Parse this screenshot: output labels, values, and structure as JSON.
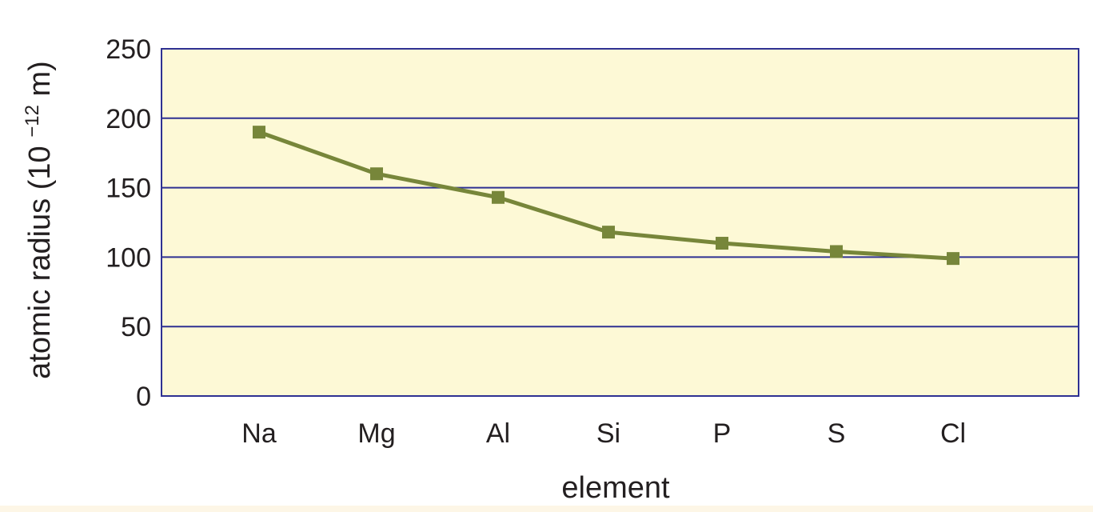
{
  "chart_data": {
    "type": "line",
    "title": "",
    "xlabel": "element",
    "ylabel": {
      "text": "atomic radius (10",
      "superscript": "−12",
      "suffix": " m)"
    },
    "categories": [
      "Na",
      "Mg",
      "Al",
      "Si",
      "P",
      "S",
      "Cl"
    ],
    "series": [
      {
        "values": [
          190,
          160,
          143,
          118,
          110,
          104,
          99
        ]
      }
    ],
    "ylim": [
      0,
      250
    ],
    "yticks": [
      0,
      50,
      100,
      150,
      200,
      250
    ],
    "grid": true,
    "colors": {
      "plot_background": "#fdf9d6",
      "gridline": "#2e3192",
      "series": "#77863a",
      "text": "#231f20"
    }
  }
}
